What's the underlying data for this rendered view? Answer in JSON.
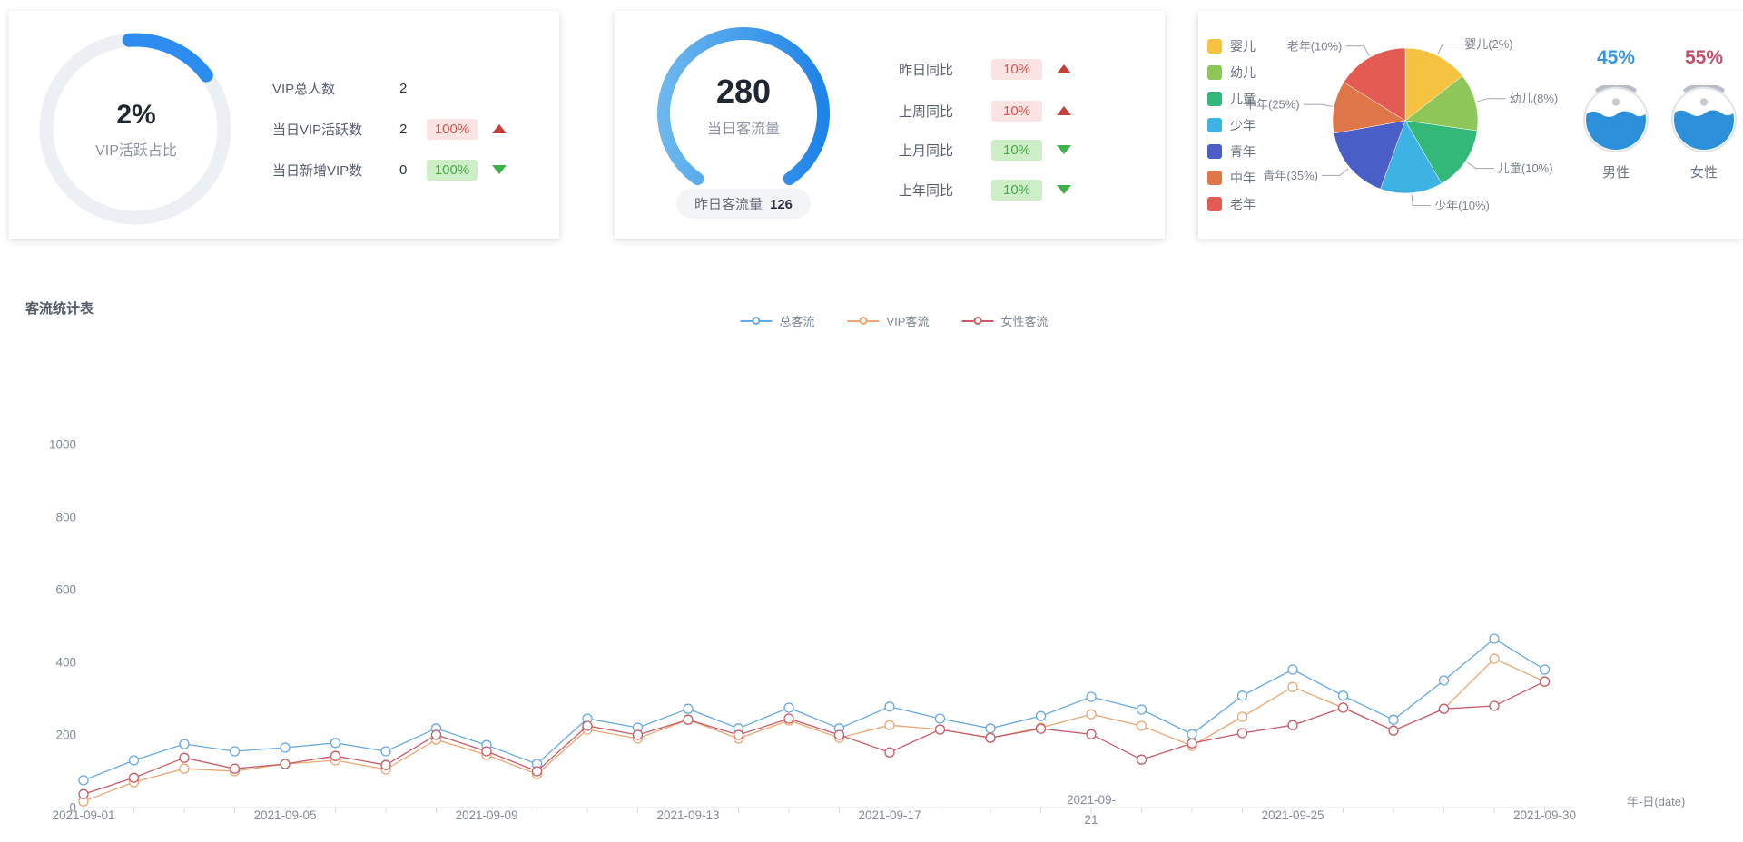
{
  "colors": {
    "primary_blue": "#2d8cf0",
    "ring_track": "#ecEFf4",
    "gauge_gradient_start": "#6cb7ee",
    "gauge_gradient_end": "#1f83e8",
    "badge_red_bg": "#fae3e3",
    "badge_red_text": "#cc5a52",
    "badge_green_bg": "#cdeec6",
    "badge_green_text": "#49a94c",
    "arrow_up_red": "#c6403a",
    "arrow_down_green": "#3db248"
  },
  "cards": {
    "vip": {
      "rows": [
        {
          "label": "VIP总人数",
          "value": "2"
        },
        {
          "label": "当日VIP活跃数",
          "value": "2",
          "badge": "100%",
          "tone": "red",
          "trend": "up"
        },
        {
          "label": "当日新增VIP数",
          "value": "0",
          "badge": "100%",
          "tone": "green",
          "trend": "down"
        }
      ]
    },
    "traffic": {
      "rows": [
        {
          "label": "昨日同比",
          "badge": "10%",
          "tone": "red",
          "trend": "up"
        },
        {
          "label": "上周同比",
          "badge": "10%",
          "tone": "red",
          "trend": "up"
        },
        {
          "label": "上月同比",
          "badge": "10%",
          "tone": "green",
          "trend": "down"
        },
        {
          "label": "上年同比",
          "badge": "10%",
          "tone": "green",
          "trend": "down"
        }
      ]
    }
  },
  "chart_data": [
    {
      "id": "vip_active_ring",
      "type": "pie",
      "center_text": "2%",
      "caption": "VIP活跃占比",
      "value_pct": 2,
      "visual_arc_degrees": 57,
      "start_degree": -4,
      "arc_color": "#2d8cf0",
      "track_color": "#ecEFf4"
    },
    {
      "id": "daily_traffic_ring",
      "type": "pie",
      "center_text": "280",
      "caption": "当日客流量",
      "pill_label": "昨日客流量",
      "pill_value": "126",
      "visual_arc_degrees": 290
    },
    {
      "id": "age_pie",
      "type": "pie",
      "legend_position": "left",
      "slices": [
        {
          "label": "婴儿",
          "value_pct": 2,
          "visual_deg": 52,
          "color": "#f5c242",
          "callout": "婴儿(2%)"
        },
        {
          "label": "幼儿",
          "value_pct": 8,
          "visual_deg": 46,
          "color": "#8fc65a",
          "callout": "幼儿(8%)"
        },
        {
          "label": "儿童",
          "value_pct": 10,
          "visual_deg": 52,
          "color": "#34b879",
          "callout": "儿童(10%)"
        },
        {
          "label": "少年",
          "value_pct": 10,
          "visual_deg": 50,
          "color": "#3db3e3",
          "callout": "少年(10%)"
        },
        {
          "label": "青年",
          "value_pct": 35,
          "visual_deg": 60,
          "color": "#4a5ec8",
          "callout": "青年(35%)"
        },
        {
          "label": "中年",
          "value_pct": 25,
          "visual_deg": 42,
          "color": "#de7648",
          "callout": "中年(25%)"
        },
        {
          "label": "老年",
          "value_pct": 10,
          "visual_deg": 58,
          "color": "#e45b54",
          "callout": "老年(10%)"
        }
      ]
    },
    {
      "id": "gender_ratio",
      "type": "pie",
      "male": {
        "percent": "45%",
        "label": "男性",
        "color": "#3d94dd"
      },
      "female": {
        "percent": "55%",
        "label": "女性",
        "color": "#c0506a"
      }
    },
    {
      "id": "traffic_trend",
      "type": "line",
      "title": "客流统计表",
      "x_axis_name": "年-日(date)",
      "ylim": [
        0,
        1000
      ],
      "y_ticks": [
        0,
        200,
        400,
        600,
        800,
        1000
      ],
      "grid": false,
      "legend_position": "top-center",
      "categories": [
        "2021-09-01",
        "2021-09-02",
        "2021-09-03",
        "2021-09-04",
        "2021-09-05",
        "2021-09-06",
        "2021-09-07",
        "2021-09-08",
        "2021-09-09",
        "2021-09-10",
        "2021-09-11",
        "2021-09-12",
        "2021-09-13",
        "2021-09-14",
        "2021-09-15",
        "2021-09-16",
        "2021-09-17",
        "2021-09-18",
        "2021-09-19",
        "2021-09-20",
        "2021-09-21",
        "2021-09-22",
        "2021-09-23",
        "2021-09-24",
        "2021-09-25",
        "2021-09-26",
        "2021-09-27",
        "2021-09-28",
        "2021-09-29",
        "2021-09-30"
      ],
      "labeled_tick_indices": [
        0,
        4,
        8,
        12,
        16,
        20,
        24,
        29
      ],
      "series": [
        {
          "name": "总客流",
          "color": "#66a9e3",
          "values": [
            75,
            130,
            175,
            155,
            165,
            178,
            155,
            218,
            172,
            120,
            245,
            220,
            272,
            218,
            275,
            218,
            278,
            245,
            218,
            252,
            305,
            270,
            202,
            308,
            380,
            308,
            242,
            350,
            465,
            380
          ]
        },
        {
          "name": "VIP客流",
          "color": "#e8a873",
          "values": [
            17,
            70,
            107,
            100,
            120,
            130,
            105,
            187,
            145,
            92,
            215,
            190,
            242,
            190,
            240,
            192,
            227,
            215,
            192,
            220,
            257,
            225,
            170,
            250,
            332,
            275,
            212,
            272,
            410,
            347
          ]
        },
        {
          "name": "女性客流",
          "color": "#c75c68",
          "values": [
            37,
            82,
            137,
            107,
            120,
            142,
            117,
            200,
            155,
            100,
            225,
            200,
            242,
            200,
            245,
            200,
            152,
            215,
            192,
            217,
            202,
            132,
            177,
            205,
            227,
            275,
            212,
            272,
            280,
            347
          ]
        }
      ]
    }
  ]
}
